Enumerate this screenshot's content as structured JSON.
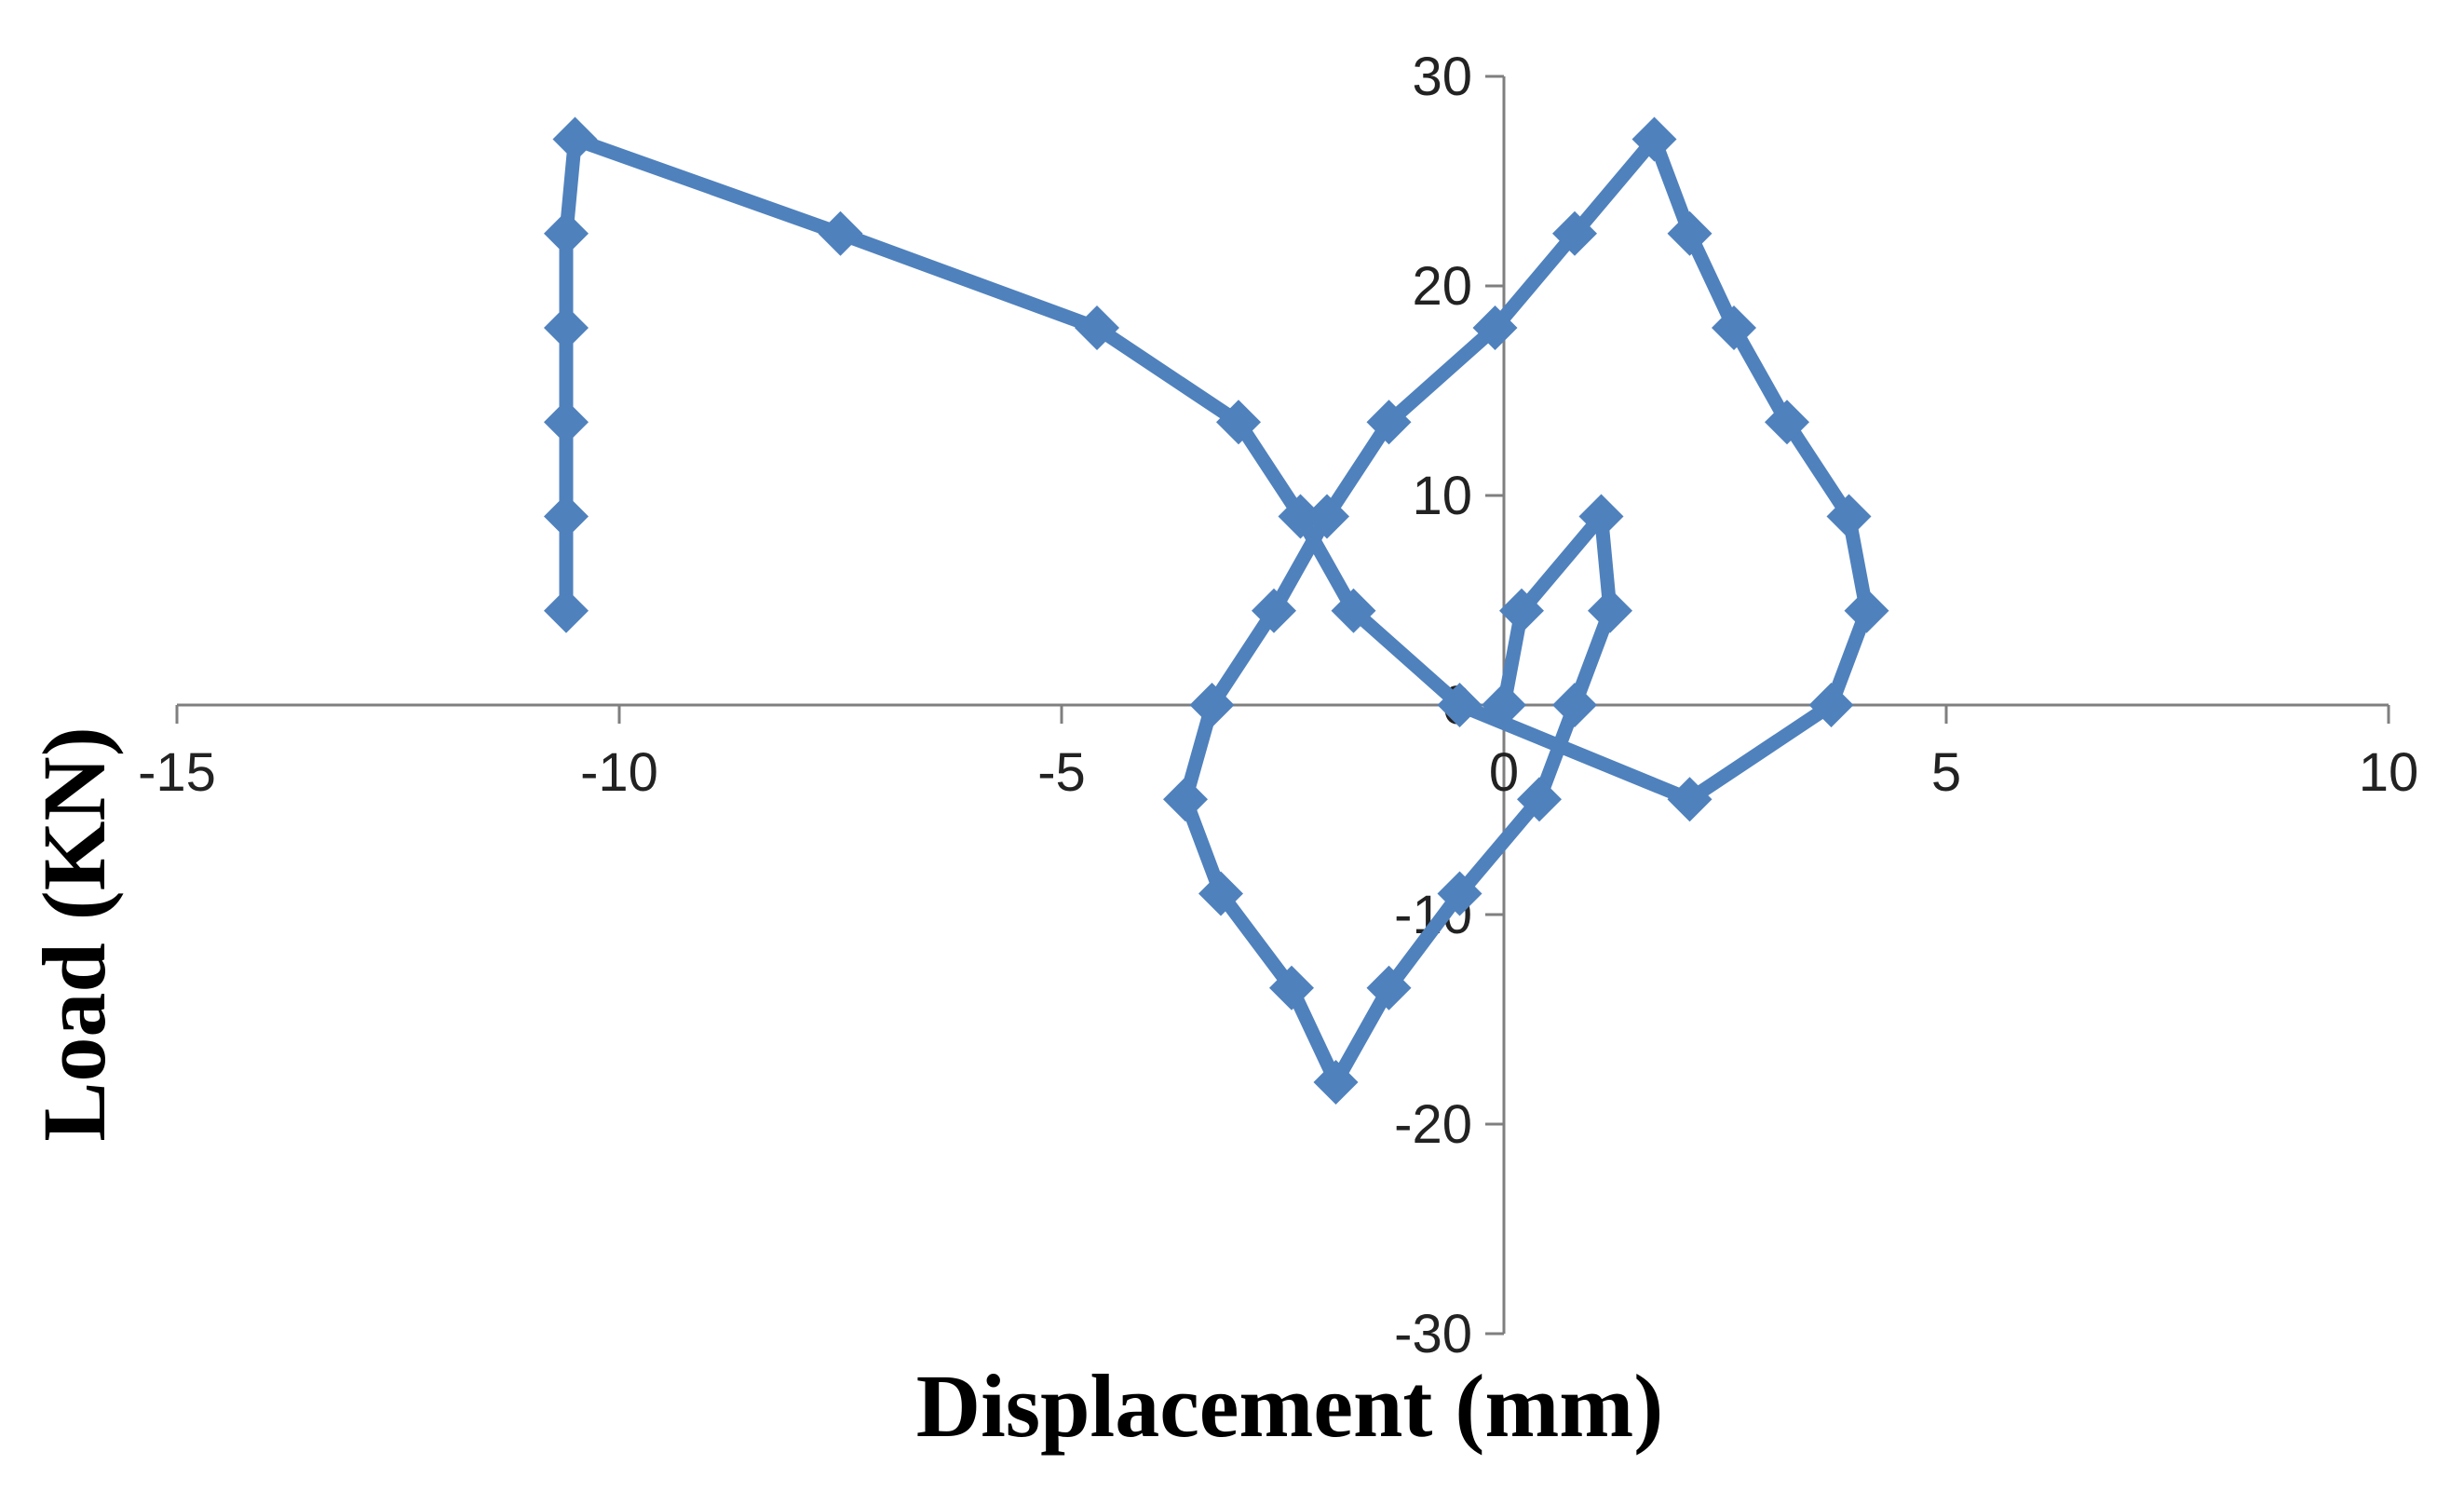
{
  "chart_data": {
    "type": "line",
    "title": "",
    "xlabel": "Displacement (mm)",
    "ylabel": "Load (KN)",
    "xlim": [
      -15,
      10
    ],
    "ylim": [
      -30,
      30
    ],
    "x_ticks": [
      -15,
      -10,
      -5,
      0,
      5,
      10
    ],
    "y_ticks": [
      30,
      20,
      10,
      0,
      -10,
      -20,
      -30
    ],
    "x_tick_labels": [
      "-15",
      "-10",
      "-5",
      "0",
      "5",
      "10"
    ],
    "y_tick_labels": [
      "30",
      "20",
      "10",
      "0",
      "-10",
      "-20",
      "-30"
    ],
    "grid": false,
    "legend": "none",
    "marker": "diamond",
    "color": "#4f81bd",
    "series": [
      {
        "x": [
          0.0,
          0.2,
          1.1,
          1.2,
          0.8,
          0.4,
          -0.5,
          -1.3,
          -1.9,
          -2.4,
          -3.2,
          -3.6,
          -3.3,
          -2.6,
          -2.0,
          -1.3,
          -0.1,
          0.8,
          1.7,
          2.1,
          2.6,
          3.2,
          3.9,
          4.1,
          3.7,
          2.1,
          -0.5,
          -1.7,
          -2.3,
          -3.0,
          -4.6,
          -7.5,
          -10.5,
          -10.6,
          -10.6,
          -10.6,
          -10.6,
          -10.6
        ],
        "y": [
          0.0,
          4.5,
          9.0,
          4.5,
          0.0,
          -4.5,
          -9.0,
          -13.5,
          -18.0,
          -13.5,
          -9.0,
          -4.5,
          0.0,
          4.5,
          9.0,
          13.5,
          18.0,
          22.5,
          27.0,
          22.5,
          18.0,
          13.5,
          9.0,
          4.5,
          0.0,
          -4.5,
          0.0,
          4.5,
          9.0,
          13.5,
          18.0,
          22.5,
          27.0,
          22.5,
          18.0,
          13.5,
          9.0,
          4.5
        ]
      }
    ]
  }
}
